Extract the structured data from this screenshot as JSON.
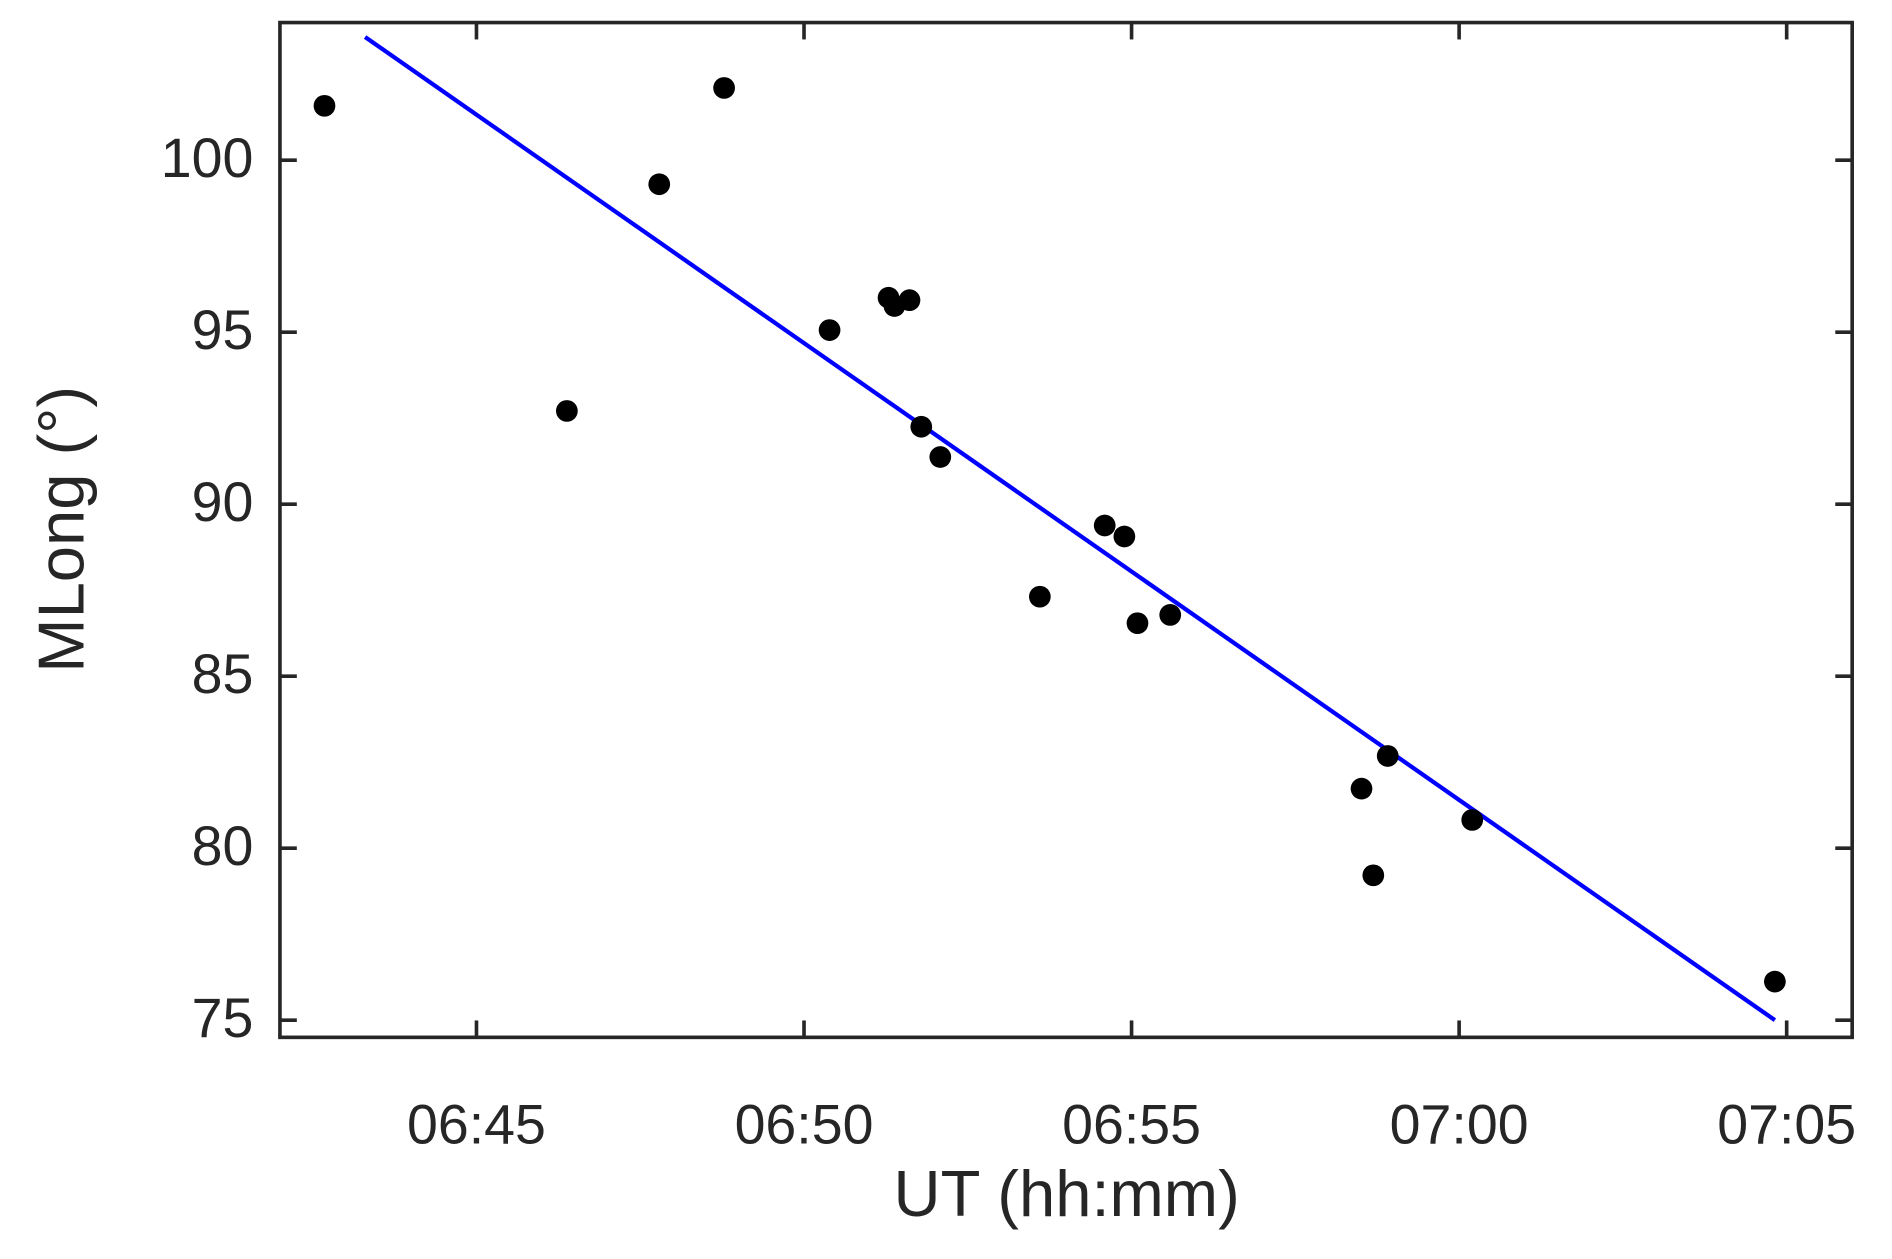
{
  "chart_data": {
    "type": "scatter",
    "x_label": "UT (hh:mm)",
    "y_label": "MLong (°)",
    "x": [
      402.68,
      406.38,
      407.79,
      408.78,
      410.39,
      411.29,
      411.38,
      411.61,
      411.79,
      412.08,
      413.6,
      414.59,
      414.89,
      415.09,
      415.59,
      418.51,
      418.69,
      418.91,
      420.2,
      424.82
    ],
    "values": [
      101.58,
      92.71,
      99.3,
      102.1,
      95.06,
      96.0,
      95.76,
      95.93,
      92.25,
      91.37,
      87.31,
      89.38,
      89.06,
      86.54,
      86.78,
      81.73,
      79.21,
      82.68,
      80.82,
      76.12
    ],
    "color": "#000000",
    "fit": {
      "type": "line",
      "x": [
        403.3,
        424.82
      ],
      "values": [
        103.58,
        75.0
      ],
      "color": "#0000ff"
    },
    "xlim": [
      402,
      426
    ],
    "xticks": [
      {
        "value": 405,
        "label": "06:45"
      },
      {
        "value": 410,
        "label": "06:50"
      },
      {
        "value": 415,
        "label": "06:55"
      },
      {
        "value": 420,
        "label": "07:00"
      },
      {
        "value": 425,
        "label": "07:05"
      }
    ],
    "ylim": [
      74.5,
      104
    ],
    "yticks": [
      75,
      80,
      85,
      90,
      95,
      100
    ],
    "grid": false
  }
}
